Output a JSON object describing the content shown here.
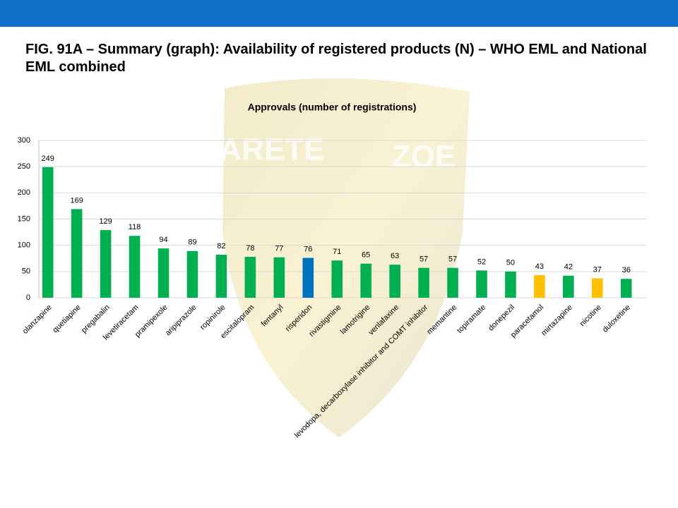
{
  "slide_title": "FIG. 91A – Summary (graph): Availability of registered products (N) – WHO EML and National EML combined",
  "watermark": [
    "ARETE",
    "ZOE"
  ],
  "chart_data": {
    "type": "bar",
    "title": "Approvals (number of registrations)",
    "categories": [
      "olanzapine",
      "quetiapine",
      "pregabalin",
      "levetiracetam",
      "pramipexole",
      "aripiprazole",
      "ropinirole",
      "escitalopram",
      "fentanyl",
      "risperidon",
      "rivastigmine",
      "lamotrigine",
      "venlafaxine",
      "levodopa, decarboxylase inhibitor and COMT inhibitor",
      "memantine",
      "topiramate",
      "donepezil",
      "paracetamol",
      "mirtazapine",
      "nicotine",
      "duloxetine"
    ],
    "values": [
      249,
      169,
      129,
      118,
      94,
      89,
      82,
      78,
      77,
      76,
      71,
      65,
      63,
      57,
      57,
      52,
      50,
      43,
      42,
      37,
      36
    ],
    "colors": [
      "#00b050",
      "#00b050",
      "#00b050",
      "#00b050",
      "#00b050",
      "#00b050",
      "#00b050",
      "#00b050",
      "#00b050",
      "#0070c0",
      "#00b050",
      "#00b050",
      "#00b050",
      "#00b050",
      "#00b050",
      "#00b050",
      "#00b050",
      "#ffc000",
      "#00b050",
      "#ffc000",
      "#00b050"
    ],
    "ylim": [
      0,
      300
    ],
    "yticks": [
      0,
      50,
      100,
      150,
      200,
      250,
      300
    ],
    "grid": true,
    "data_labels": true
  }
}
